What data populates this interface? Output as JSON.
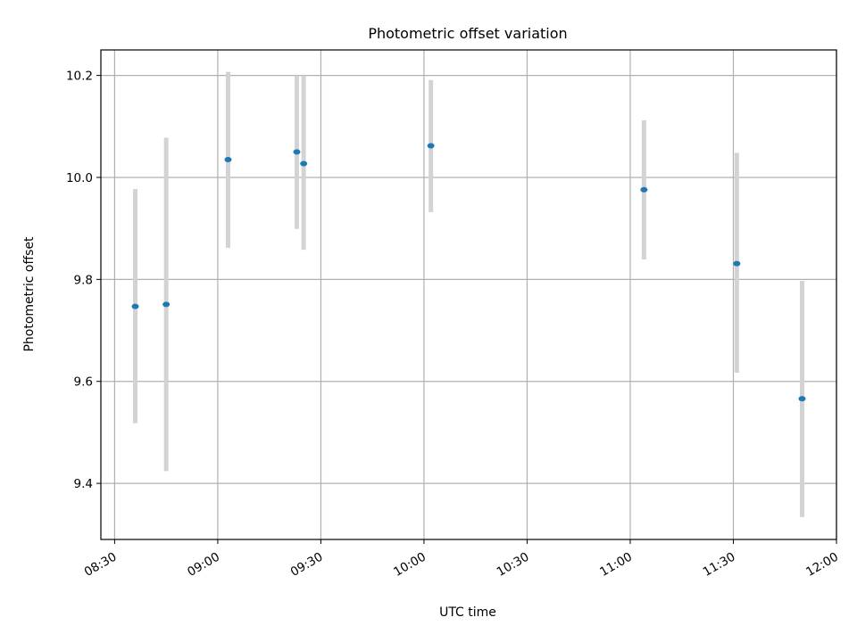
{
  "chart_data": {
    "type": "scatter",
    "title": "Photometric offset variation",
    "xlabel": "UTC time",
    "ylabel": "Photometric offset",
    "x_unit": "UTC time of day",
    "xlim": [
      "08:26",
      "12:00"
    ],
    "ylim": [
      9.29,
      10.25
    ],
    "xticks": [
      "08:30",
      "09:00",
      "09:30",
      "10:00",
      "10:30",
      "11:00",
      "11:30",
      "12:00"
    ],
    "yticks": [
      9.4,
      9.6,
      9.8,
      10.0,
      10.2
    ],
    "ytick_labels": [
      "9.4",
      "9.6",
      "9.8",
      "10.0",
      "10.2"
    ],
    "grid": true,
    "legend": null,
    "series": [
      {
        "marker_color": "#1f77b4",
        "error_bar_color": "#d3d3d3",
        "points": [
          {
            "x": "08:36",
            "y": 9.747,
            "y_low": 9.518,
            "y_high": 9.977
          },
          {
            "x": "08:45",
            "y": 9.751,
            "y_low": 9.424,
            "y_high": 10.078
          },
          {
            "x": "09:03",
            "y": 10.035,
            "y_low": 9.862,
            "y_high": 10.207
          },
          {
            "x": "09:23",
            "y": 10.05,
            "y_low": 9.899,
            "y_high": 10.2
          },
          {
            "x": "09:25",
            "y": 10.027,
            "y_low": 9.858,
            "y_high": 10.2
          },
          {
            "x": "10:02",
            "y": 10.062,
            "y_low": 9.932,
            "y_high": 10.191
          },
          {
            "x": "11:04",
            "y": 9.976,
            "y_low": 9.839,
            "y_high": 10.112
          },
          {
            "x": "11:31",
            "y": 9.831,
            "y_low": 9.617,
            "y_high": 10.048
          },
          {
            "x": "11:50",
            "y": 9.566,
            "y_low": 9.334,
            "y_high": 9.797
          }
        ]
      }
    ]
  }
}
